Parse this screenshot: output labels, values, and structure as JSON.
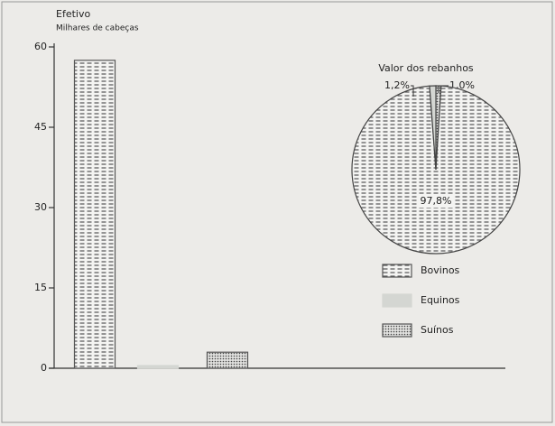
{
  "chart_data": [
    {
      "type": "bar",
      "title": "Efetivo",
      "subtitle": "Milhares de cabeças",
      "categories": [
        null
      ],
      "series": [
        {
          "name": "Bovinos",
          "color": "#555555",
          "pattern": "dashes",
          "values": [
            57.5
          ]
        },
        {
          "name": "Equinos",
          "color": "#d4d6d2",
          "pattern": "plain",
          "values": [
            0.5
          ]
        },
        {
          "name": "Suínos",
          "color": "#555555",
          "pattern": "dots",
          "values": [
            3
          ]
        }
      ],
      "ylim": [
        0,
        60
      ],
      "yticks": [
        0,
        15,
        30,
        45,
        60
      ]
    },
    {
      "type": "pie",
      "title": "Valor dos rebanhos",
      "values": [
        97.8,
        1.2,
        1.0
      ],
      "value_labels": [
        "97,8%",
        "1,2%",
        "1,0%"
      ]
    }
  ]
}
